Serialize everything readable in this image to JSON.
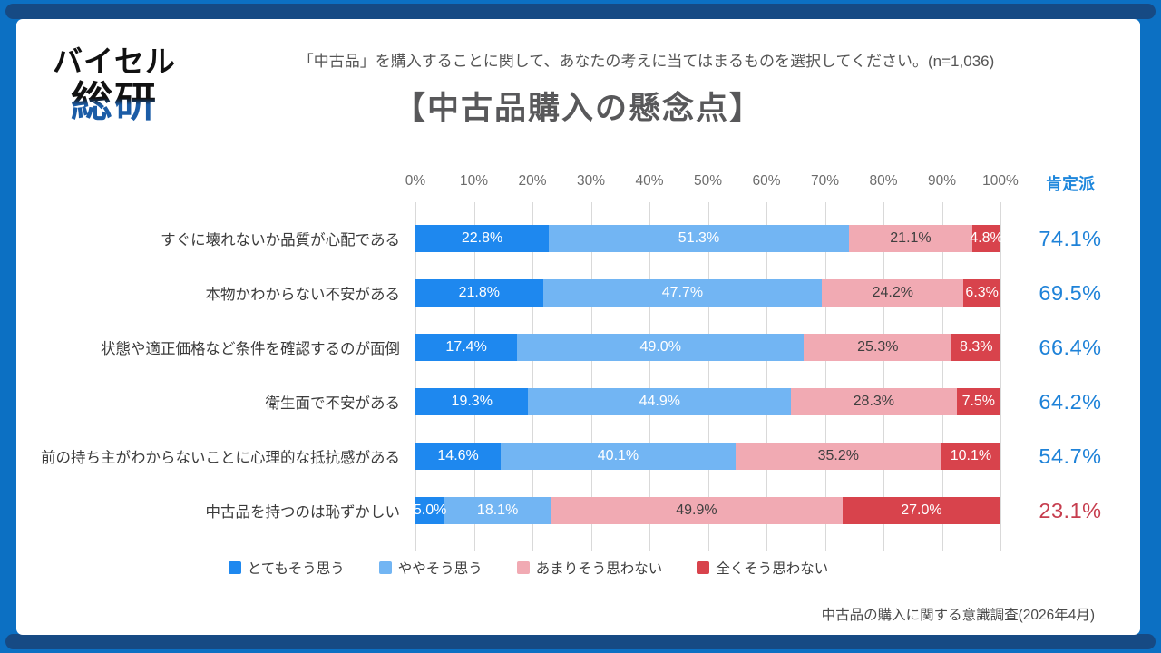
{
  "logo": {
    "line1": "バイセル",
    "line2": "総研"
  },
  "header": {
    "subtitle": "「中古品」を購入することに関して、あなたの考えに当てはまるものを選択してください。(n=1,036)",
    "title": "【中古品購入の懸念点】"
  },
  "colors": {
    "frame_blue": "#0c70c3",
    "frame_navy": "#164a84",
    "title_gray": "#58585a",
    "gridline": "#d9d9d9",
    "summary_blue": "#1e82d8",
    "summary_red": "#c63d4e"
  },
  "chart_data": {
    "type": "bar",
    "stacked": true,
    "orientation": "horizontal",
    "xlim": [
      0,
      100
    ],
    "x_ticks": [
      "0%",
      "10%",
      "20%",
      "30%",
      "40%",
      "50%",
      "60%",
      "70%",
      "80%",
      "90%",
      "100%"
    ],
    "grid": true,
    "legend_position": "bottom",
    "categories": [
      "すぐに壊れないか品質が心配である",
      "本物かわからない不安がある",
      "状態や適正価格など条件を確認するのが面倒",
      "衛生面で不安がある",
      "前の持ち主がわからないことに心理的な抵抗感がある",
      "中古品を持つのは恥ずかしい"
    ],
    "series": [
      {
        "name": "とてもそう思う",
        "color": "#1e88ef",
        "label_color": "#ffffff",
        "values": [
          22.8,
          21.8,
          17.4,
          19.3,
          14.6,
          5.0
        ]
      },
      {
        "name": "ややそう思う",
        "color": "#72b5f3",
        "label_color": "#ffffff",
        "values": [
          51.3,
          47.7,
          49.0,
          44.9,
          40.1,
          18.1
        ]
      },
      {
        "name": "あまりそう思わない",
        "color": "#f1aab3",
        "label_color": "#3f3f3f",
        "values": [
          21.1,
          24.2,
          25.3,
          28.3,
          35.2,
          49.9
        ]
      },
      {
        "name": "全くそう思わない",
        "color": "#d8434c",
        "label_color": "#ffffff",
        "values": [
          4.8,
          6.3,
          8.3,
          7.5,
          10.1,
          27.0
        ]
      }
    ],
    "summary_column": {
      "header": "肯定派",
      "values": [
        "74.1%",
        "69.5%",
        "66.4%",
        "64.2%",
        "54.7%",
        "23.1%"
      ],
      "colors": [
        "#1e82d8",
        "#1e82d8",
        "#1e82d8",
        "#1e82d8",
        "#1e82d8",
        "#c63d4e"
      ]
    }
  },
  "source": "中古品の購入に関する意識調査(2026年4月)"
}
